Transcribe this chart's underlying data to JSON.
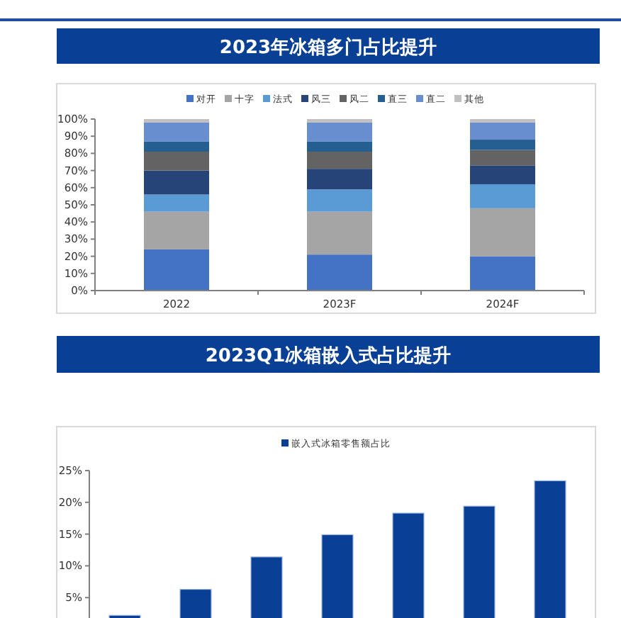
{
  "chart_data": [
    {
      "type": "bar",
      "title": "2023年冰箱多门占比提升",
      "stacked": true,
      "legend": "top",
      "categories": [
        "2022",
        "2023F",
        "2024F"
      ],
      "ylim": [
        0,
        100
      ],
      "yticks": [
        {
          "value": 0,
          "label": "0%"
        },
        {
          "value": 10,
          "label": "10%"
        },
        {
          "value": 20,
          "label": "20%"
        },
        {
          "value": 30,
          "label": "30%"
        },
        {
          "value": 40,
          "label": "40%"
        },
        {
          "value": 50,
          "label": "50%"
        },
        {
          "value": 60,
          "label": "60%"
        },
        {
          "value": 70,
          "label": "70%"
        },
        {
          "value": 80,
          "label": "80%"
        },
        {
          "value": 90,
          "label": "90%"
        },
        {
          "value": 100,
          "label": "100%"
        }
      ],
      "series": [
        {
          "name": "对开",
          "color": "#4472c4",
          "values": [
            24,
            21,
            20
          ]
        },
        {
          "name": "十字",
          "color": "#a5a5a5",
          "values": [
            22,
            25,
            28
          ]
        },
        {
          "name": "法式",
          "color": "#5b9bd5",
          "values": [
            10,
            13,
            14
          ]
        },
        {
          "name": "风三",
          "color": "#264478",
          "values": [
            14,
            12,
            11
          ]
        },
        {
          "name": "风二",
          "color": "#636363",
          "values": [
            11,
            10,
            9
          ]
        },
        {
          "name": "直三",
          "color": "#255e91",
          "values": [
            6,
            6,
            6
          ]
        },
        {
          "name": "直二",
          "color": "#698ed0",
          "values": [
            11,
            11,
            10
          ]
        },
        {
          "name": "其他",
          "color": "#c0c0c0",
          "values": [
            2,
            2,
            2
          ]
        }
      ]
    },
    {
      "type": "bar",
      "title": "2023Q1冰箱嵌入式占比提升",
      "legend": "top",
      "categories": [
        null,
        null,
        null,
        null,
        null,
        null,
        null
      ],
      "ylim": [
        0,
        25
      ],
      "yticks": [
        {
          "value": 5,
          "label": "5%"
        },
        {
          "value": 10,
          "label": "10%"
        },
        {
          "value": 15,
          "label": "15%"
        },
        {
          "value": 20,
          "label": "20%"
        },
        {
          "value": 25,
          "label": "25%"
        }
      ],
      "series": [
        {
          "name": "嵌入式冰箱零售额占比",
          "color": "#0a3f96",
          "values": [
            2.2,
            6.3,
            11.4,
            14.9,
            18.3,
            19.4,
            23.4
          ]
        }
      ]
    }
  ]
}
